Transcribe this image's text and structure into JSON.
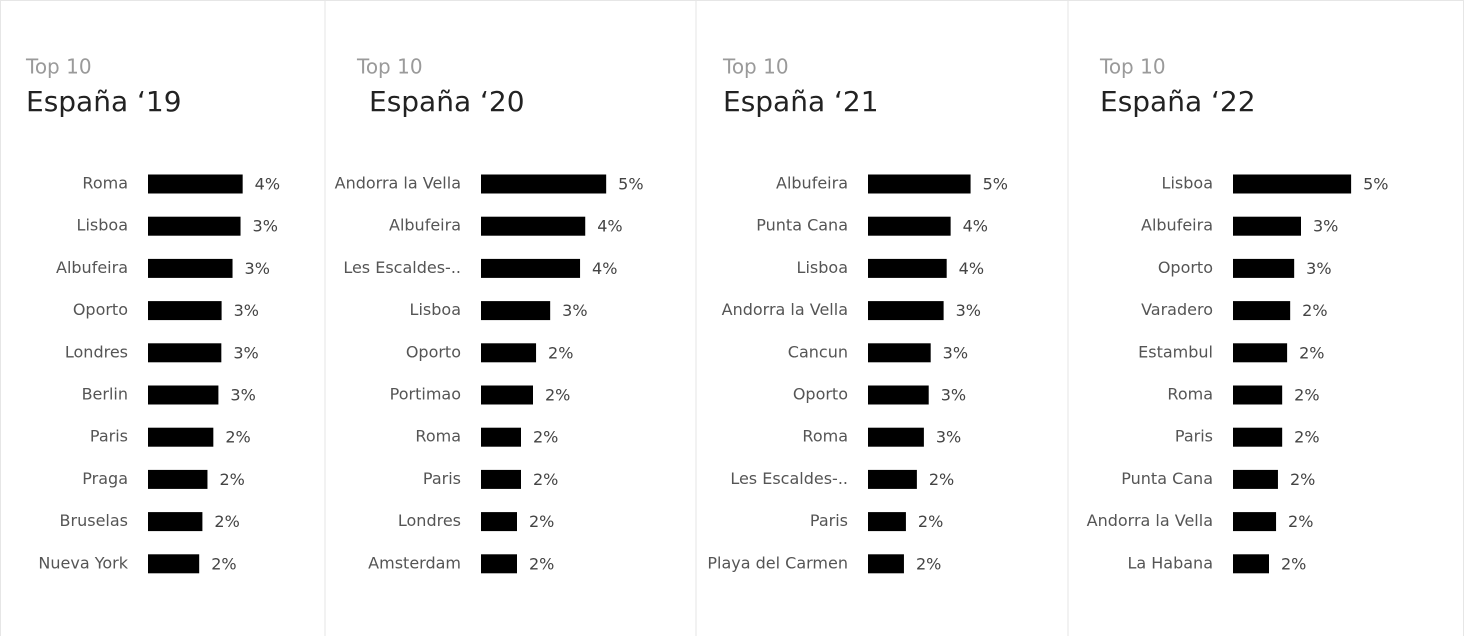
{
  "chart_data": [
    {
      "type": "bar",
      "orientation": "horizontal",
      "subtitle": "Top 10",
      "title": "España ‘19",
      "color": "#000000",
      "categories": [
        "Roma",
        "Lisboa",
        "Albufeira",
        "Oporto",
        "Londres",
        "Berlin",
        "Paris",
        "Praga",
        "Bruselas",
        "Nueva York"
      ],
      "values": [
        3.55,
        3.47,
        3.17,
        2.76,
        2.75,
        2.64,
        2.45,
        2.23,
        2.04,
        1.92
      ],
      "value_labels": [
        "4%",
        "3%",
        "3%",
        "3%",
        "3%",
        "3%",
        "2%",
        "2%",
        "2%",
        "2%"
      ],
      "xlim": [
        0,
        6
      ]
    },
    {
      "type": "bar",
      "orientation": "horizontal",
      "subtitle": "Top 10",
      "title": "España ‘20",
      "color": "#000000",
      "categories": [
        "Andorra la Vella",
        "Albufeira",
        "Les Escaldes-..",
        "Lisboa",
        "Oporto",
        "Portimao",
        "Roma",
        "Paris",
        "Londres",
        "Amsterdam"
      ],
      "values": [
        5.32,
        4.43,
        4.21,
        2.94,
        2.34,
        2.21,
        1.7,
        1.7,
        1.53,
        1.53
      ],
      "value_labels": [
        "5%",
        "4%",
        "4%",
        "3%",
        "2%",
        "2%",
        "2%",
        "2%",
        "2%",
        "2%"
      ],
      "xlim": [
        0,
        6.8
      ]
    },
    {
      "type": "bar",
      "orientation": "horizontal",
      "subtitle": "Top 10",
      "title": "España ‘21",
      "color": "#000000",
      "categories": [
        "Albufeira",
        "Punta Cana",
        "Lisboa",
        "Andorra la Vella",
        "Cancun",
        "Oporto",
        "Roma",
        "Les Escaldes-..",
        "Paris",
        "Playa del Carmen"
      ],
      "values": [
        4.68,
        3.77,
        3.59,
        3.45,
        2.86,
        2.77,
        2.55,
        2.23,
        1.73,
        1.64
      ],
      "value_labels": [
        "5%",
        "4%",
        "4%",
        "3%",
        "3%",
        "3%",
        "3%",
        "2%",
        "2%",
        "2%"
      ],
      "xlim": [
        0,
        7.3
      ]
    },
    {
      "type": "bar",
      "orientation": "horizontal",
      "subtitle": "Top 10",
      "title": "España ‘22",
      "color": "#000000",
      "categories": [
        "Lisboa",
        "Albufeira",
        "Oporto",
        "Varadero",
        "Estambul",
        "Roma",
        "Paris",
        "Punta Cana",
        "Andorra la Vella",
        "La Habana"
      ],
      "values": [
        5.02,
        2.89,
        2.6,
        2.43,
        2.3,
        2.09,
        2.09,
        1.91,
        1.83,
        1.53
      ],
      "value_labels": [
        "5%",
        "3%",
        "3%",
        "2%",
        "2%",
        "2%",
        "2%",
        "2%",
        "2%",
        "2%"
      ],
      "xlim": [
        0,
        6.8
      ]
    }
  ]
}
